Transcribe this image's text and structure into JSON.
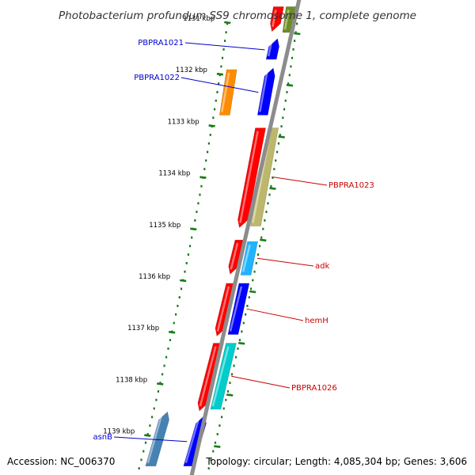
{
  "title": "Photobacterium profundum SS9 chromosome 1, complete genome",
  "footer": {
    "accession": "Accession: NC_006370",
    "summary": "Topology: circular; Length: 4,085,304 bp; Genes: 3,606"
  },
  "colors": {
    "backbone": "#8c8c8c",
    "dots": "#1a7a1a",
    "forward_label": "#0000cc",
    "reverse_label": "#cc0000"
  },
  "ticks": [
    {
      "kbp": 1131,
      "label": "1131 kbp"
    },
    {
      "kbp": 1132,
      "label": "1132 kbp"
    },
    {
      "kbp": 1133,
      "label": "1133 kbp"
    },
    {
      "kbp": 1134,
      "label": "1134 kbp"
    },
    {
      "kbp": 1135,
      "label": "1135 kbp"
    },
    {
      "kbp": 1136,
      "label": "1136 kbp"
    },
    {
      "kbp": 1137,
      "label": "1137 kbp"
    },
    {
      "kbp": 1138,
      "label": "1138 kbp"
    },
    {
      "kbp": 1139,
      "label": "1139 kbp"
    }
  ],
  "genes": [
    {
      "name": "top-red",
      "label": "",
      "strand": "+",
      "start_kbp": 1130.7,
      "end_kbp": 1131.15,
      "color": "#ff0000",
      "track": "inner",
      "dir": "down"
    },
    {
      "name": "top-olive",
      "label": "",
      "strand": "+",
      "start_kbp": 1130.7,
      "end_kbp": 1131.2,
      "color": "#6b8e23",
      "track": "outer",
      "dir": "none"
    },
    {
      "name": "PBPRA1021",
      "label": "PBPRA1021",
      "strand": "-",
      "start_kbp": 1131.35,
      "end_kbp": 1131.72,
      "color": "#0000ff",
      "track": "inner",
      "dir": "up"
    },
    {
      "name": "orange",
      "label": "",
      "strand": "-",
      "start_kbp": 1131.92,
      "end_kbp": 1132.8,
      "color": "#ff8c00",
      "track": "far",
      "dir": "none"
    },
    {
      "name": "PBPRA1022",
      "label": "PBPRA1022",
      "strand": "-",
      "start_kbp": 1131.92,
      "end_kbp": 1132.8,
      "color": "#0000ff",
      "track": "inner",
      "dir": "up"
    },
    {
      "name": "PBPRA1023-red",
      "label": "",
      "strand": "+",
      "start_kbp": 1133.05,
      "end_kbp": 1134.95,
      "color": "#ff0000",
      "track": "inner",
      "dir": "down"
    },
    {
      "name": "PBPRA1023",
      "label": "PBPRA1023",
      "strand": "+",
      "start_kbp": 1133.05,
      "end_kbp": 1134.95,
      "color": "#bdb76b",
      "track": "outer",
      "dir": "none"
    },
    {
      "name": "adk-red",
      "label": "",
      "strand": "+",
      "start_kbp": 1135.22,
      "end_kbp": 1135.85,
      "color": "#ff0000",
      "track": "inner",
      "dir": "down"
    },
    {
      "name": "adk",
      "label": "adk",
      "strand": "+",
      "start_kbp": 1135.25,
      "end_kbp": 1135.9,
      "color": "#1eb4ff",
      "track": "outer",
      "dir": "none"
    },
    {
      "name": "hemH-red",
      "label": "",
      "strand": "+",
      "start_kbp": 1136.06,
      "end_kbp": 1137.05,
      "color": "#ff0000",
      "track": "inner",
      "dir": "down"
    },
    {
      "name": "hemH",
      "label": "hemH",
      "strand": "+",
      "start_kbp": 1136.06,
      "end_kbp": 1137.05,
      "color": "#0000ff",
      "track": "outer",
      "dir": "none"
    },
    {
      "name": "PBPRA1026-red",
      "label": "",
      "strand": "+",
      "start_kbp": 1137.22,
      "end_kbp": 1138.5,
      "color": "#ff0000",
      "track": "inner",
      "dir": "down"
    },
    {
      "name": "PBPRA1026",
      "label": "PBPRA1026",
      "strand": "+",
      "start_kbp": 1137.22,
      "end_kbp": 1138.5,
      "color": "#00cccc",
      "track": "outer",
      "dir": "none"
    },
    {
      "name": "asnB-steel",
      "label": "",
      "strand": "-",
      "start_kbp": 1138.58,
      "end_kbp": 1139.6,
      "color": "#4682b4",
      "track": "far",
      "dir": "up"
    },
    {
      "name": "asnB",
      "label": "asnB",
      "strand": "-",
      "start_kbp": 1138.65,
      "end_kbp": 1139.6,
      "color": "#0000ff",
      "track": "inner",
      "dir": "up"
    }
  ],
  "labels": [
    {
      "gene": "PBPRA1021",
      "text": "PBPRA1021",
      "side": "left",
      "strand": "-"
    },
    {
      "gene": "PBPRA1022",
      "text": "PBPRA1022",
      "side": "left",
      "strand": "-"
    },
    {
      "gene": "PBPRA1023",
      "text": "PBPRA1023",
      "side": "right",
      "strand": "+"
    },
    {
      "gene": "adk",
      "text": "adk",
      "side": "right",
      "strand": "+"
    },
    {
      "gene": "hemH",
      "text": "hemH",
      "side": "right",
      "strand": "+"
    },
    {
      "gene": "PBPRA1026",
      "text": "PBPRA1026",
      "side": "right",
      "strand": "+"
    },
    {
      "gene": "asnB",
      "text": "asnB",
      "side": "left",
      "strand": "-"
    }
  ]
}
